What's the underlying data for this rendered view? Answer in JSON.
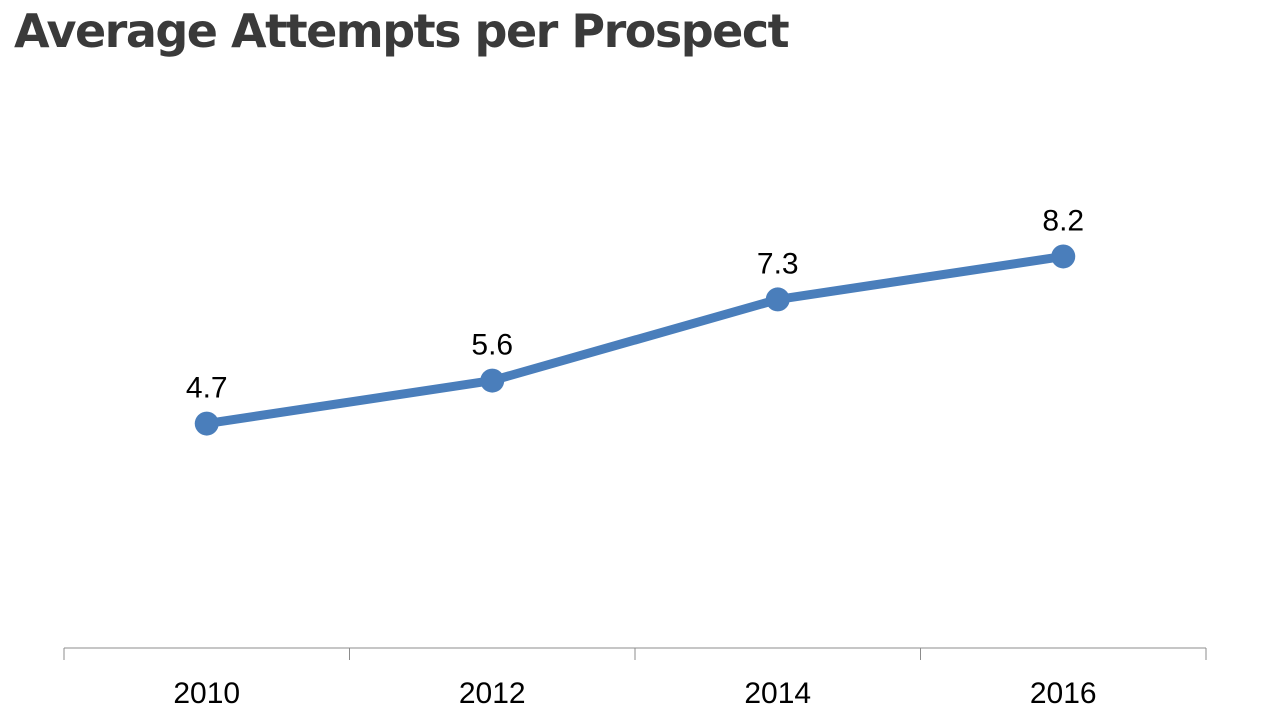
{
  "chart_data": {
    "type": "line",
    "title": "Average Attempts per Prospect",
    "xlabel": "",
    "ylabel": "",
    "categories": [
      "2010",
      "2012",
      "2014",
      "2016"
    ],
    "series": [
      {
        "values": [
          4.7,
          5.6,
          7.3,
          8.2
        ],
        "color": "#4a7ebb",
        "markers": "circle",
        "data_labels": [
          "4.7",
          "5.6",
          "7.3",
          "8.2"
        ]
      }
    ],
    "ylim": [
      0,
      12
    ],
    "grid": false,
    "legend": "none"
  }
}
